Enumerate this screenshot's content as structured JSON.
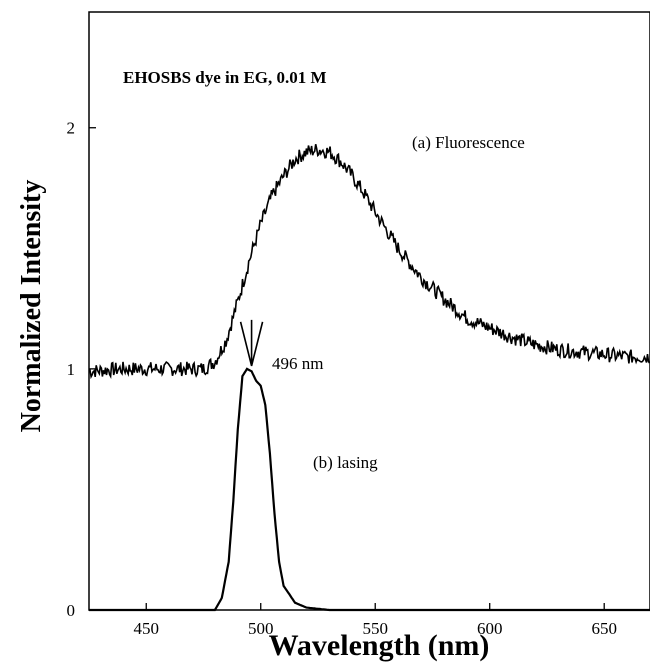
{
  "chart_data": {
    "type": "line",
    "title": "",
    "xlabel": "Wavelength (nm)",
    "ylabel": "Normalized Intensity",
    "xlim": [
      425,
      670
    ],
    "ylim": [
      0,
      2.48
    ],
    "x_ticks": [
      450,
      500,
      550,
      600,
      650
    ],
    "y_ticks": [
      0,
      1,
      2
    ],
    "grid": false,
    "legend": "none",
    "annotations": {
      "sample": "EHOSBS dye in EG, 0.01 M",
      "fluorescence": "(a) Fluorescence",
      "lasing": "(b) lasing",
      "peak": "496 nm"
    },
    "peak_arrow_x": 496,
    "series": [
      {
        "label": "(a) Fluorescence",
        "x": [
          425,
          440,
          460,
          475,
          480,
          485,
          490,
          495,
          500,
          505,
          510,
          515,
          520,
          525,
          530,
          535,
          540,
          545,
          550,
          560,
          570,
          580,
          590,
          600,
          610,
          620,
          630,
          640,
          650,
          660,
          670
        ],
        "y": [
          0.99,
          1.0,
          1.0,
          1.0,
          1.03,
          1.12,
          1.28,
          1.45,
          1.6,
          1.72,
          1.8,
          1.87,
          1.9,
          1.91,
          1.9,
          1.86,
          1.8,
          1.73,
          1.65,
          1.5,
          1.38,
          1.29,
          1.21,
          1.17,
          1.13,
          1.1,
          1.08,
          1.07,
          1.06,
          1.05,
          1.05
        ],
        "noise": 0.03
      },
      {
        "label": "(b) lasing",
        "x": [
          425,
          470,
          480,
          483,
          486,
          488,
          490,
          492,
          494,
          496,
          498,
          500,
          502,
          504,
          506,
          508,
          510,
          515,
          520,
          530,
          545,
          670
        ],
        "y": [
          0,
          0,
          0.0,
          0.05,
          0.2,
          0.45,
          0.75,
          0.97,
          1.0,
          0.99,
          0.95,
          0.93,
          0.85,
          0.65,
          0.4,
          0.2,
          0.1,
          0.03,
          0.01,
          0.0,
          0.0,
          0.0
        ]
      }
    ]
  }
}
